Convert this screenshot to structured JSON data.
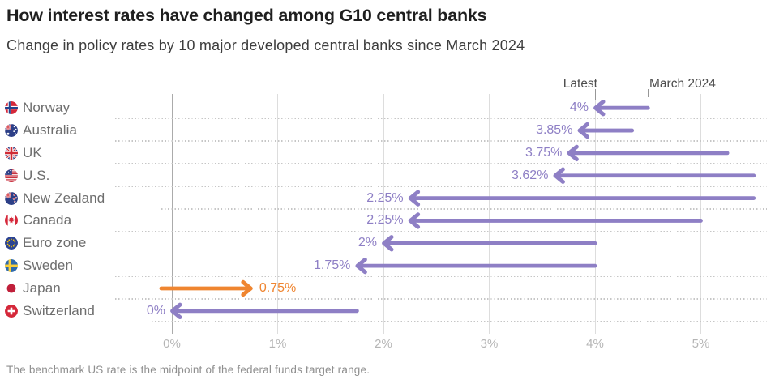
{
  "header": {
    "title": "How interest rates have changed among G10 central banks",
    "subtitle": "Change in policy rates by 10 major developed central banks since March 2024"
  },
  "annotations": {
    "latest": "Latest",
    "march": "March 2024"
  },
  "footnote": "The benchmark US rate is the midpoint of the federal funds target range.",
  "colors": {
    "decrease_arrow": "#8e7fc5",
    "increase_arrow": "#ef8530",
    "zero_axis": "#ababab",
    "gridline": "#dddddd"
  },
  "chart_data": {
    "type": "arrow",
    "title": "How interest rates have changed among G10 central banks",
    "subtitle": "Change in policy rates by 10 major developed central banks since March 2024",
    "unit": "%",
    "x_axis": {
      "tick_labels": [
        "0%",
        "1%",
        "2%",
        "3%",
        "4%",
        "5%"
      ],
      "range_pct": [
        0,
        5.6
      ],
      "gridlines": true
    },
    "legend": {
      "start_label": "March 2024",
      "end_label": "Latest"
    },
    "rows": [
      {
        "country": "Norway",
        "flag": "norway",
        "march_2024": 4.5,
        "latest": 4.0,
        "latest_label": "4%",
        "change": "decrease"
      },
      {
        "country": "Australia",
        "flag": "australia",
        "march_2024": 4.35,
        "latest": 3.85,
        "latest_label": "3.85%",
        "change": "decrease"
      },
      {
        "country": "UK",
        "flag": "uk",
        "march_2024": 5.25,
        "latest": 3.75,
        "latest_label": "3.75%",
        "change": "decrease"
      },
      {
        "country": "U.S.",
        "flag": "us",
        "march_2024": 5.5,
        "latest": 3.62,
        "latest_label": "3.62%",
        "change": "decrease"
      },
      {
        "country": "New Zealand",
        "flag": "new-zealand",
        "march_2024": 5.5,
        "latest": 2.25,
        "latest_label": "2.25%",
        "change": "decrease"
      },
      {
        "country": "Canada",
        "flag": "canada",
        "march_2024": 5.0,
        "latest": 2.25,
        "latest_label": "2.25%",
        "change": "decrease"
      },
      {
        "country": "Euro zone",
        "flag": "euro-zone",
        "march_2024": 4.0,
        "latest": 2.0,
        "latest_label": "2%",
        "change": "decrease"
      },
      {
        "country": "Sweden",
        "flag": "sweden",
        "march_2024": 4.0,
        "latest": 1.75,
        "latest_label": "1.75%",
        "change": "decrease"
      },
      {
        "country": "Japan",
        "flag": "japan",
        "march_2024": -0.1,
        "latest": 0.75,
        "latest_label": "0.75%",
        "change": "increase"
      },
      {
        "country": "Switzerland",
        "flag": "switzerland",
        "march_2024": 1.75,
        "latest": 0.0,
        "latest_label": "0%",
        "change": "decrease"
      }
    ]
  }
}
